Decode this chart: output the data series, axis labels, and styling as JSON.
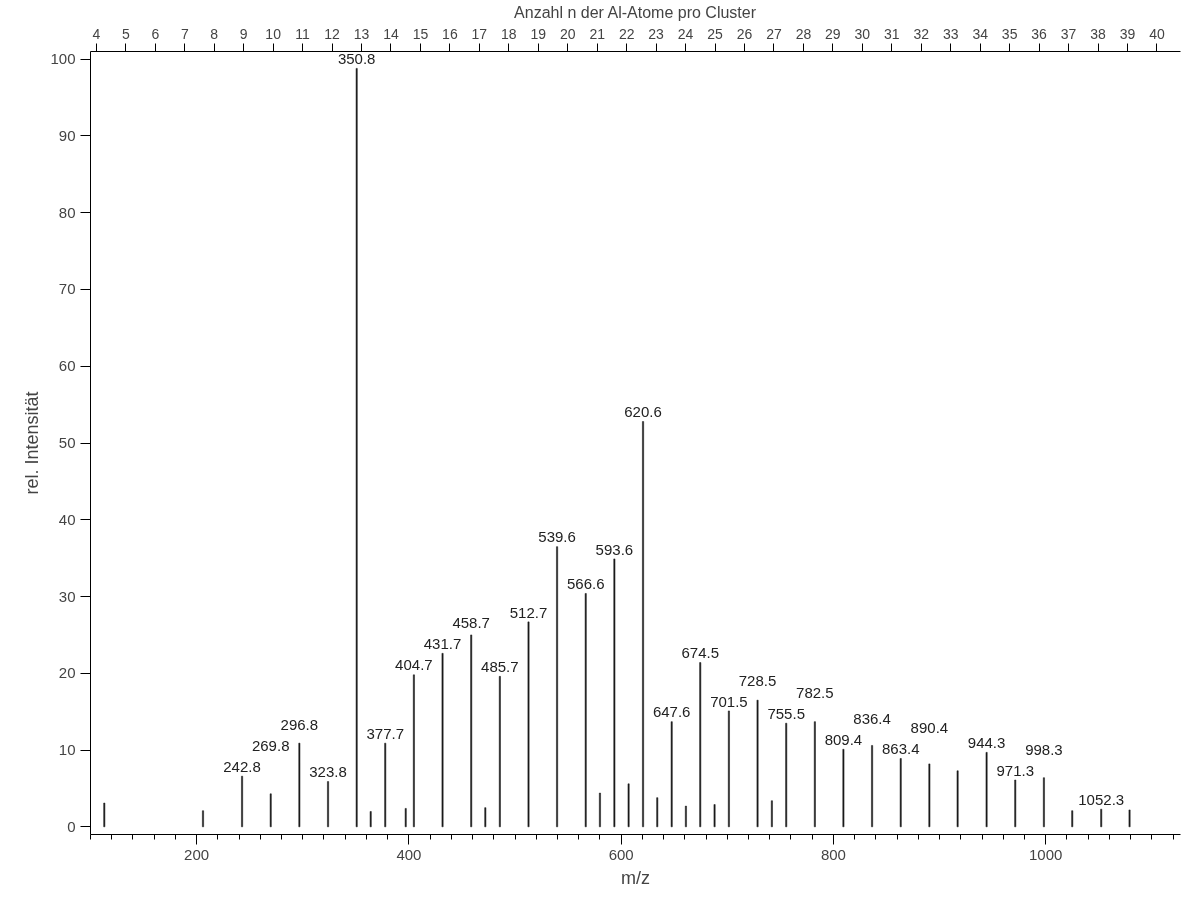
{
  "chart_data": {
    "type": "bar",
    "xlabel": "m/z",
    "ylabel": "rel. Intensität",
    "x2label": "Anzahl n der Al-Atome pro Cluster",
    "x": [
      113,
      206,
      242.8,
      269.8,
      296.8,
      323.8,
      350.8,
      364,
      377.7,
      397,
      404.7,
      431.7,
      458.7,
      472,
      485.7,
      512.7,
      539.6,
      566.6,
      580,
      593.6,
      607,
      620.6,
      634,
      647.6,
      661,
      674.5,
      688,
      701.5,
      728.5,
      742,
      755.5,
      782.5,
      809.4,
      836.4,
      863.4,
      890.4,
      917,
      944.3,
      971.3,
      998.3,
      1025,
      1052.3,
      1079
    ],
    "values": [
      3.1,
      2.1,
      6.6,
      4.3,
      10.9,
      5.9,
      98.8,
      2.0,
      10.9,
      2.4,
      19.8,
      22.6,
      25,
      2.5,
      19.6,
      26.7,
      36.5,
      30.4,
      4.4,
      34.9,
      5.6,
      52.8,
      3.8,
      13.7,
      2.7,
      21.4,
      2.9,
      15.1,
      16.5,
      3.4,
      13.5,
      13.7,
      10.1,
      10.6,
      8.9,
      8.2,
      7.3,
      9.7,
      6.1,
      6.4,
      2.1,
      2.3,
      2.2
    ],
    "annotations": [
      {
        "text": "242.8",
        "x": 242.8,
        "y": 6.6
      },
      {
        "text": "269.8",
        "x": 269.8,
        "y": 4.3
      },
      {
        "text": "296.8",
        "x": 296.8,
        "y": 10.9
      },
      {
        "text": "323.8",
        "x": 323.8,
        "y": 5.9
      },
      {
        "text": "350.8",
        "x": 350.8,
        "y": 98.8
      },
      {
        "text": "377.7",
        "x": 377.7,
        "y": 10.9
      },
      {
        "text": "404.7",
        "x": 404.7,
        "y": 19.8
      },
      {
        "text": "431.7",
        "x": 431.7,
        "y": 22.6
      },
      {
        "text": "458.7",
        "x": 458.7,
        "y": 25
      },
      {
        "text": "485.7",
        "x": 485.7,
        "y": 19.6
      },
      {
        "text": "512.7",
        "x": 512.7,
        "y": 26.7
      },
      {
        "text": "539.6",
        "x": 539.6,
        "y": 36.5
      },
      {
        "text": "566.6",
        "x": 566.6,
        "y": 30.4
      },
      {
        "text": "593.6",
        "x": 593.6,
        "y": 34.9
      },
      {
        "text": "620.6",
        "x": 620.6,
        "y": 52.8
      },
      {
        "text": "647.6",
        "x": 647.6,
        "y": 13.7
      },
      {
        "text": "674.5",
        "x": 674.5,
        "y": 21.4
      },
      {
        "text": "701.5",
        "x": 701.5,
        "y": 15.1
      },
      {
        "text": "728.5",
        "x": 728.5,
        "y": 16.5
      },
      {
        "text": "755.5",
        "x": 755.5,
        "y": 13.5
      },
      {
        "text": "782.5",
        "x": 782.5,
        "y": 13.7
      },
      {
        "text": "809.4",
        "x": 809.4,
        "y": 10.1
      },
      {
        "text": "836.4",
        "x": 836.4,
        "y": 10.6
      },
      {
        "text": "863.4",
        "x": 863.4,
        "y": 8.9
      },
      {
        "text": "890.4",
        "x": 890.4,
        "y": 8.2
      },
      {
        "text": "944.3",
        "x": 944.3,
        "y": 9.7
      },
      {
        "text": "971.3",
        "x": 971.3,
        "y": 6.1
      },
      {
        "text": "998.3",
        "x": 998.3,
        "y": 6.4
      },
      {
        "text": "1052.3",
        "x": 1052.3,
        "y": 2.3
      }
    ],
    "color": "#1a1a1a",
    "xlim": [
      100,
      1127
    ],
    "xticks": [
      200,
      400,
      600,
      800,
      1000
    ],
    "ylim": [
      -1,
      101
    ],
    "yticks": [
      0,
      10,
      20,
      30,
      40,
      50,
      60,
      70,
      80,
      90,
      100
    ],
    "x2lim": [
      3.8,
      40.8
    ],
    "x2ticks": [
      4,
      5,
      6,
      7,
      8,
      9,
      10,
      11,
      12,
      13,
      14,
      15,
      16,
      17,
      18,
      19,
      20,
      21,
      22,
      23,
      24,
      25,
      26,
      27,
      28,
      29,
      30,
      31,
      32,
      33,
      34,
      35,
      36,
      37,
      38,
      39,
      40
    ],
    "grid": false
  }
}
